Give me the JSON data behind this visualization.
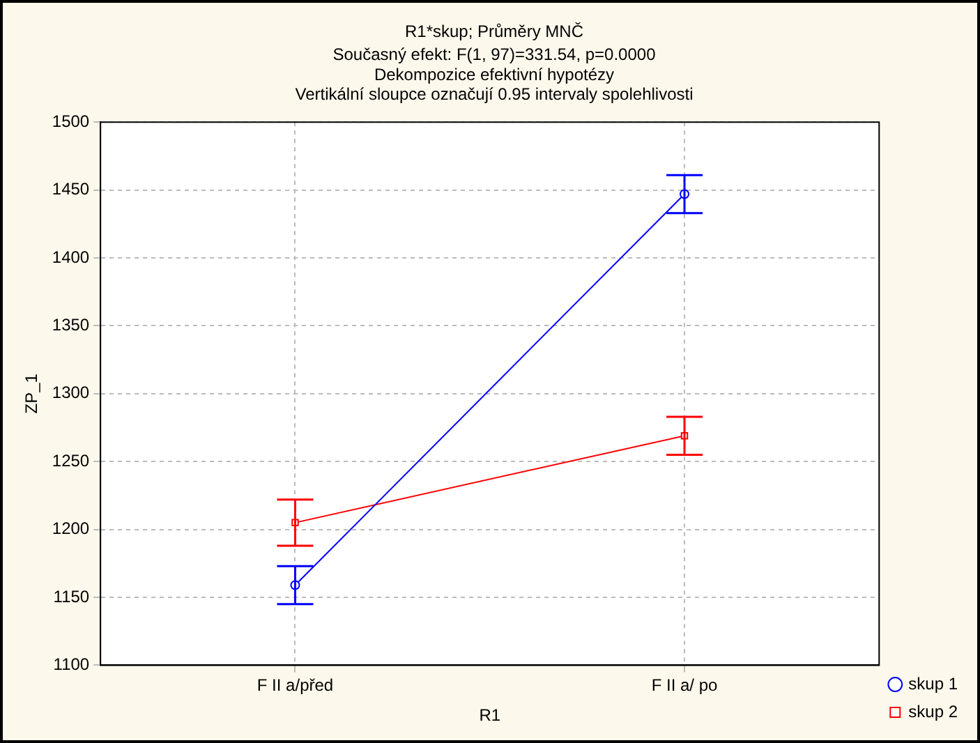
{
  "chart_data": {
    "type": "line",
    "title": "R1*skup; Průměry MNČ",
    "subtitle": "Současný efekt: F(1, 97)=331.54, p=0.0000",
    "annotations": [
      "Dekompozice efektivní hypotézy",
      "Vertikální sloupce označují 0.95 intervaly spolehlivosti"
    ],
    "xlabel": "R1",
    "ylabel": "ZP_1",
    "categories": [
      "F II a/před",
      "F II a/ po"
    ],
    "series": [
      {
        "name": "skup 1",
        "color": "#0000ff",
        "marker": "circle",
        "values": [
          1159,
          1447
        ],
        "errors": [
          14,
          14
        ]
      },
      {
        "name": "skup 2",
        "color": "#ff0000",
        "marker": "square",
        "values": [
          1205,
          1269
        ],
        "errors": [
          17,
          14
        ]
      }
    ],
    "ylim": [
      1100,
      1500
    ],
    "yticks": [
      1100,
      1150,
      1200,
      1250,
      1300,
      1350,
      1400,
      1450,
      1500
    ],
    "grid": true,
    "legend": "bottom right"
  }
}
